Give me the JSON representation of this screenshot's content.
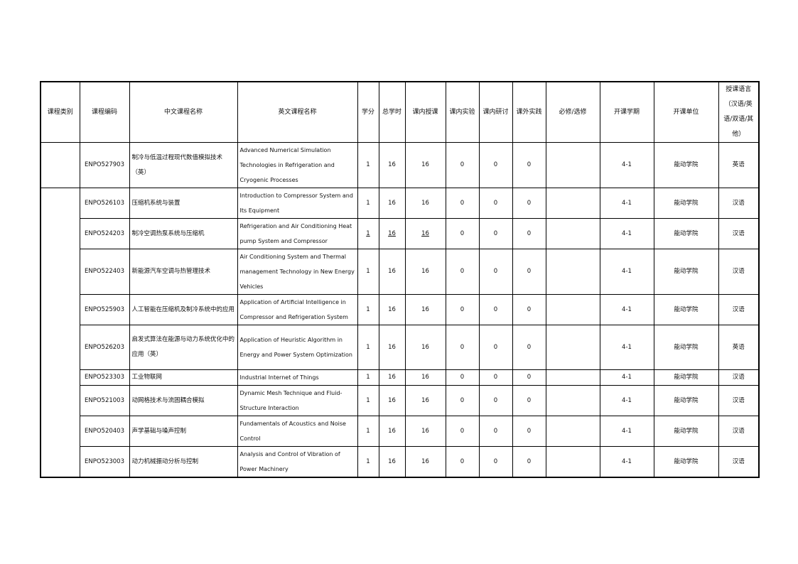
{
  "headers": [
    "课程类别",
    "课程编码",
    "中文课程名称",
    "英文课程名称",
    "学分",
    "总学时",
    "课内授课",
    "课内实验",
    "课内研讨",
    "课外实践",
    "必修/选修",
    "开课学期",
    "开课单位",
    "授课语言（汉语/英语/双语/其他）"
  ],
  "rows": [
    {
      "code": "ENPO527903",
      "cn": "制冷与低温过程现代数值模拟技术（英）",
      "en": "Advanced Numerical Simulation Technologies in Refrigeration and Cryogenic Processes",
      "credit": "1",
      "hours": "16",
      "lecture": "16",
      "lab": "0",
      "seminar": "0",
      "practice": "0",
      "req": "",
      "term": "4-1",
      "unit": "能动学院",
      "lang": "英语"
    },
    {
      "code": "ENPO526103",
      "cn": "压缩机系统与装置",
      "en": "Introduction to Compressor System and Its Equipment",
      "credit": "1",
      "hours": "16",
      "lecture": "16",
      "lab": "0",
      "seminar": "0",
      "practice": "0",
      "req": "",
      "term": "4-1",
      "unit": "能动学院",
      "lang": "汉语"
    },
    {
      "code": "ENPO524203",
      "cn": "制冷空调热泵系统与压缩机",
      "en": "Refrigeration and Air Conditioning Heat pump System and Compressor",
      "credit": "1",
      "hours": "16",
      "lecture": "16",
      "lab": "0",
      "seminar": "0",
      "practice": "0",
      "req": "",
      "term": "4-1",
      "unit": "能动学院",
      "lang": "汉语"
    },
    {
      "code": "ENPO522403",
      "cn": "新能源汽车空调与热管理技术",
      "en": "Air Conditioning System and Thermal management Technology in New Energy Vehicles",
      "credit": "1",
      "hours": "16",
      "lecture": "16",
      "lab": "0",
      "seminar": "0",
      "practice": "0",
      "req": "",
      "term": "4-1",
      "unit": "能动学院",
      "lang": "汉语"
    },
    {
      "code": "ENPO525903",
      "cn": "人工智能在压缩机及制冷系统中的应用",
      "en": "Application of Artificial Intelligence in Compressor and Refrigeration System",
      "credit": "1",
      "hours": "16",
      "lecture": "16",
      "lab": "0",
      "seminar": "0",
      "practice": "0",
      "req": "",
      "term": "4-1",
      "unit": "能动学院",
      "lang": "汉语"
    },
    {
      "code": "ENPO526203",
      "cn": "启发式算法在能源与动力系统优化中的应用（英）",
      "en": "Application of Heuristic Algorithm in Energy and Power System Optimization",
      "credit": "1",
      "hours": "16",
      "lecture": "16",
      "lab": "0",
      "seminar": "0",
      "practice": "0",
      "req": "",
      "term": "4-1",
      "unit": "能动学院",
      "lang": "英语"
    },
    {
      "code": "ENPO523303",
      "cn": "工业物联网",
      "en": "Industrial Internet of Things",
      "credit": "1",
      "hours": "16",
      "lecture": "16",
      "lab": "0",
      "seminar": "0",
      "practice": "0",
      "req": "",
      "term": "4-1",
      "unit": "能动学院",
      "lang": "汉语"
    },
    {
      "code": "ENPO521003",
      "cn": "动网格技术与流固耦合模拟",
      "en": "Dynamic Mesh Technique and Fluid-Structure Interaction",
      "credit": "1",
      "hours": "16",
      "lecture": "16",
      "lab": "0",
      "seminar": "0",
      "practice": "0",
      "req": "",
      "term": "4-1",
      "unit": "能动学院",
      "lang": "汉语"
    },
    {
      "code": "ENPO520403",
      "cn": "声学基础与噪声控制",
      "en": "Fundamentals of Acoustics and Noise Control",
      "credit": "1",
      "hours": "16",
      "lecture": "16",
      "lab": "0",
      "seminar": "0",
      "practice": "0",
      "req": "",
      "term": "4-1",
      "unit": "能动学院",
      "lang": "汉语"
    },
    {
      "code": "ENPO523003",
      "cn": "动力机械振动分析与控制",
      "en": "Analysis and Control of Vibration of Power Machinery",
      "credit": "1",
      "hours": "16",
      "lecture": "16",
      "lab": "0",
      "seminar": "0",
      "practice": "0",
      "req": "",
      "term": "4-1",
      "unit": "能动学院",
      "lang": "汉语"
    }
  ]
}
